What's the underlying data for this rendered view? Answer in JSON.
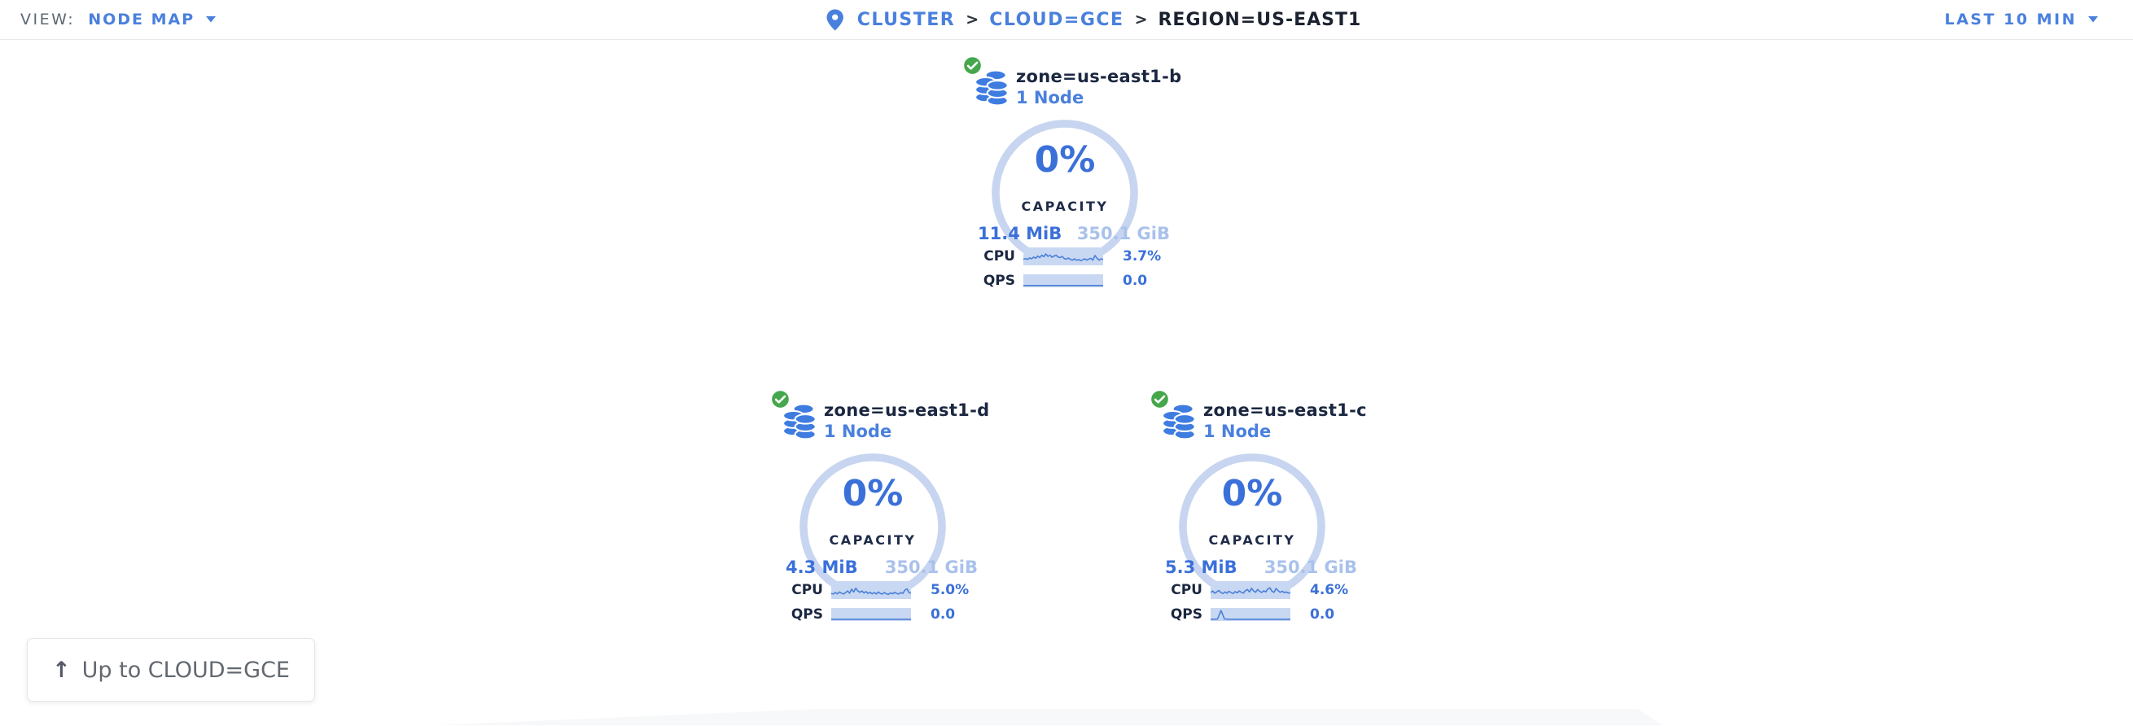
{
  "toolbar": {
    "view_label": "VIEW:",
    "view_value": "NODE MAP",
    "time_range": "LAST 10 MIN"
  },
  "breadcrumb": {
    "separator": ">",
    "items": [
      {
        "label": "CLUSTER"
      },
      {
        "label": "CLOUD=GCE"
      },
      {
        "label": "REGION=US-EAST1"
      }
    ]
  },
  "zones": [
    {
      "name": "zone=us-east1-b",
      "node_count": "1 Node",
      "status": "healthy",
      "capacity_pct": "0%",
      "capacity_label": "CAPACITY",
      "used": "11.4 MiB",
      "total": "350.1 GiB",
      "cpu_label": "CPU",
      "cpu_value": "3.7%",
      "qps_label": "QPS",
      "qps_value": "0.0",
      "cpu_sparkline": [
        0.3,
        0.36,
        0.3,
        0.4,
        0.34,
        0.46,
        0.38,
        0.52,
        0.42,
        0.58,
        0.48,
        0.66,
        0.5,
        0.58,
        0.44,
        0.52,
        0.58,
        0.46,
        0.42,
        0.5,
        0.36,
        0.32,
        0.4,
        0.3,
        0.26,
        0.34,
        0.24,
        0.3,
        0.22,
        0.28,
        0.34,
        0.26,
        0.32,
        0.38,
        0.26,
        0.56,
        0.38,
        0.26,
        0.34,
        0.3
      ],
      "qps_sparkline": [
        0.05,
        0.05,
        0.05,
        0.05,
        0.05,
        0.05,
        0.05,
        0.05,
        0.05,
        0.05,
        0.05,
        0.05,
        0.05,
        0.05,
        0.05,
        0.05,
        0.05,
        0.05,
        0.05,
        0.05,
        0.05,
        0.05,
        0.05,
        0.05
      ]
    },
    {
      "name": "zone=us-east1-d",
      "node_count": "1 Node",
      "status": "healthy",
      "capacity_pct": "0%",
      "capacity_label": "CAPACITY",
      "used": "4.3 MiB",
      "total": "350.1 GiB",
      "cpu_label": "CPU",
      "cpu_value": "5.0%",
      "qps_label": "QPS",
      "qps_value": "0.0",
      "cpu_sparkline": [
        0.28,
        0.24,
        0.34,
        0.26,
        0.38,
        0.3,
        0.24,
        0.34,
        0.44,
        0.3,
        0.56,
        0.38,
        0.62,
        0.44,
        0.36,
        0.44,
        0.32,
        0.4,
        0.28,
        0.36,
        0.26,
        0.34,
        0.24,
        0.38,
        0.28,
        0.24,
        0.34,
        0.26,
        0.22,
        0.32,
        0.26,
        0.36,
        0.28,
        0.24,
        0.34,
        0.28,
        0.5,
        0.58,
        0.34,
        0.3
      ],
      "qps_sparkline": [
        0.05,
        0.05,
        0.05,
        0.05,
        0.05,
        0.05,
        0.05,
        0.05,
        0.05,
        0.05,
        0.05,
        0.05,
        0.05,
        0.05,
        0.05,
        0.05,
        0.05,
        0.05,
        0.05,
        0.05,
        0.05,
        0.05,
        0.05,
        0.05
      ]
    },
    {
      "name": "zone=us-east1-c",
      "node_count": "1 Node",
      "status": "healthy",
      "capacity_pct": "0%",
      "capacity_label": "CAPACITY",
      "used": "5.3 MiB",
      "total": "350.1 GiB",
      "cpu_label": "CPU",
      "cpu_value": "4.6%",
      "qps_label": "QPS",
      "qps_value": "0.0",
      "cpu_sparkline": [
        0.34,
        0.44,
        0.3,
        0.38,
        0.48,
        0.34,
        0.28,
        0.38,
        0.3,
        0.42,
        0.34,
        0.28,
        0.4,
        0.32,
        0.44,
        0.36,
        0.3,
        0.46,
        0.54,
        0.38,
        0.62,
        0.44,
        0.36,
        0.54,
        0.42,
        0.34,
        0.46,
        0.38,
        0.58,
        0.64,
        0.42,
        0.36,
        0.6,
        0.46,
        0.36,
        0.42,
        0.34,
        0.38,
        0.3,
        0.34
      ],
      "qps_sparkline": [
        0.05,
        0.05,
        0.07,
        0.88,
        0.08,
        0.05,
        0.05,
        0.05,
        0.05,
        0.05,
        0.05,
        0.05,
        0.05,
        0.05,
        0.05,
        0.05,
        0.05,
        0.05,
        0.05,
        0.05,
        0.05,
        0.05,
        0.05,
        0.05
      ]
    }
  ],
  "up_button": {
    "arrow": "↑",
    "label": "Up to CLOUD=GCE"
  },
  "colors": {
    "link_blue": "#4a80dd",
    "value_blue": "#3b70d9",
    "arc_light_blue": "#c7d5f0",
    "spark_bg": "#c9d8f2",
    "spark_line": "#4a7fd9",
    "total_faded_blue": "#a9c1ec",
    "healthy_green": "#45a74b",
    "db_icon_blue": "#3e7ce0",
    "dark_text": "#1b2740"
  }
}
